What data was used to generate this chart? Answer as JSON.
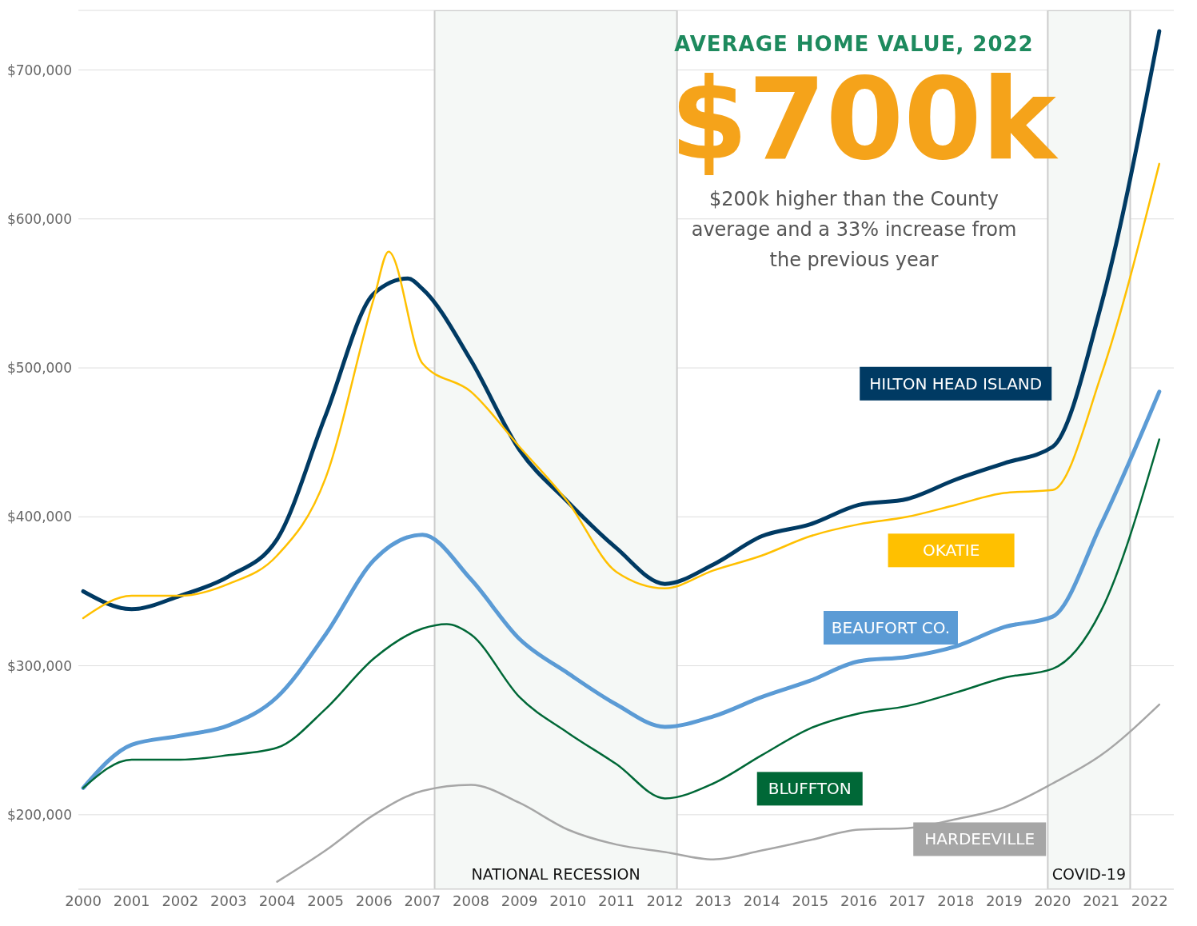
{
  "chart_data": {
    "type": "line",
    "title": "AVERAGE HOME VALUE, 2022",
    "annotations": [
      "$700k",
      "$200k higher than the County average and a 33% increase from the previous year"
    ],
    "series": [
      {
        "name": "HILTON HEAD ISLAND",
        "color": "#003a63",
        "x": [
          2000,
          2001,
          2002,
          2003,
          2004,
          2005,
          2006,
          2006.7,
          2007,
          2008,
          2009,
          2010,
          2011,
          2012,
          2013,
          2014,
          2015,
          2016,
          2017,
          2018,
          2019,
          2020,
          2021,
          2022.2
        ],
        "values": [
          350000,
          338000,
          347000,
          360000,
          385000,
          468000,
          550000,
          560000,
          553000,
          505000,
          445000,
          410000,
          379000,
          355000,
          368000,
          387000,
          395000,
          408000,
          412000,
          425000,
          436000,
          447000,
          542000,
          726000
        ]
      },
      {
        "name": "OKATIE",
        "color": "#ffc000",
        "x": [
          2000,
          2001,
          2002,
          2003,
          2004,
          2005,
          2006,
          2006.3,
          2007,
          2008,
          2009,
          2010,
          2011,
          2012,
          2013,
          2014,
          2015,
          2016,
          2017,
          2018,
          2019,
          2020,
          2021,
          2022.2
        ],
        "values": [
          332000,
          347000,
          347000,
          355000,
          374000,
          426000,
          547000,
          578000,
          503000,
          484000,
          447000,
          410000,
          363000,
          352000,
          364000,
          374000,
          387000,
          395000,
          400000,
          408000,
          416000,
          418000,
          495000,
          637000
        ]
      },
      {
        "name": "BEAUFORT CO.",
        "color": "#5b9bd5",
        "x": [
          2000,
          2001,
          2002,
          2003,
          2004,
          2005,
          2006,
          2007,
          2008,
          2009,
          2010,
          2011,
          2012,
          2013,
          2014,
          2015,
          2016,
          2017,
          2018,
          2019,
          2020,
          2021,
          2022.2
        ],
        "values": [
          218000,
          247000,
          253000,
          260000,
          279000,
          321000,
          371000,
          388000,
          358000,
          318000,
          295000,
          274000,
          259000,
          266000,
          279000,
          290000,
          303000,
          306000,
          313000,
          326000,
          333000,
          395000,
          484000
        ]
      },
      {
        "name": "BLUFFTON",
        "color": "#006837",
        "x": [
          2000,
          2001,
          2002,
          2003,
          2004,
          2005,
          2006,
          2007,
          2007.5,
          2008,
          2009,
          2010,
          2011,
          2012,
          2013,
          2014,
          2015,
          2016,
          2017,
          2018,
          2019,
          2020,
          2021,
          2022.2
        ],
        "values": [
          218000,
          237000,
          237000,
          240000,
          245000,
          271000,
          305000,
          325000,
          328000,
          321000,
          279000,
          255000,
          234000,
          211000,
          221000,
          240000,
          258000,
          268000,
          273000,
          282000,
          292000,
          298000,
          337000,
          452000
        ]
      },
      {
        "name": "HARDEEVILLE",
        "color": "#a6a6a6",
        "x": [
          2004,
          2005,
          2006,
          2007,
          2008,
          2009,
          2010,
          2011,
          2012,
          2013,
          2014,
          2015,
          2016,
          2017,
          2018,
          2019,
          2020,
          2021,
          2022.2
        ],
        "values": [
          155000,
          176000,
          200000,
          216000,
          220000,
          208000,
          190000,
          180000,
          175000,
          170000,
          176000,
          183000,
          190000,
          191000,
          197000,
          205000,
          221000,
          240000,
          274000
        ]
      }
    ],
    "xlim": [
      1999.9,
      2022.5
    ],
    "xticks": [
      2000,
      2001,
      2002,
      2003,
      2004,
      2005,
      2006,
      2007,
      2008,
      2009,
      2010,
      2011,
      2012,
      2013,
      2014,
      2015,
      2016,
      2017,
      2018,
      2019,
      2020,
      2021,
      2022
    ],
    "ylim": [
      150000,
      740000
    ],
    "yticks": [
      {
        "value": 200000,
        "label": "$200,000"
      },
      {
        "value": 300000,
        "label": "$300,000"
      },
      {
        "value": 400000,
        "label": "$400,000"
      },
      {
        "value": 500000,
        "label": "$500,000"
      },
      {
        "value": 600000,
        "label": "$600,000"
      },
      {
        "value": 700000,
        "label": "$700,000"
      }
    ],
    "grid": "y",
    "bands": [
      {
        "axis": "x",
        "from": 2007.25,
        "to": 2012.25,
        "label": "NATIONAL RECESSION",
        "color": "#f5f8f6"
      },
      {
        "axis": "x",
        "from": 2019.9,
        "to": 2021.6,
        "label": "COVID-19",
        "color": "#f5f8f6"
      }
    ]
  }
}
